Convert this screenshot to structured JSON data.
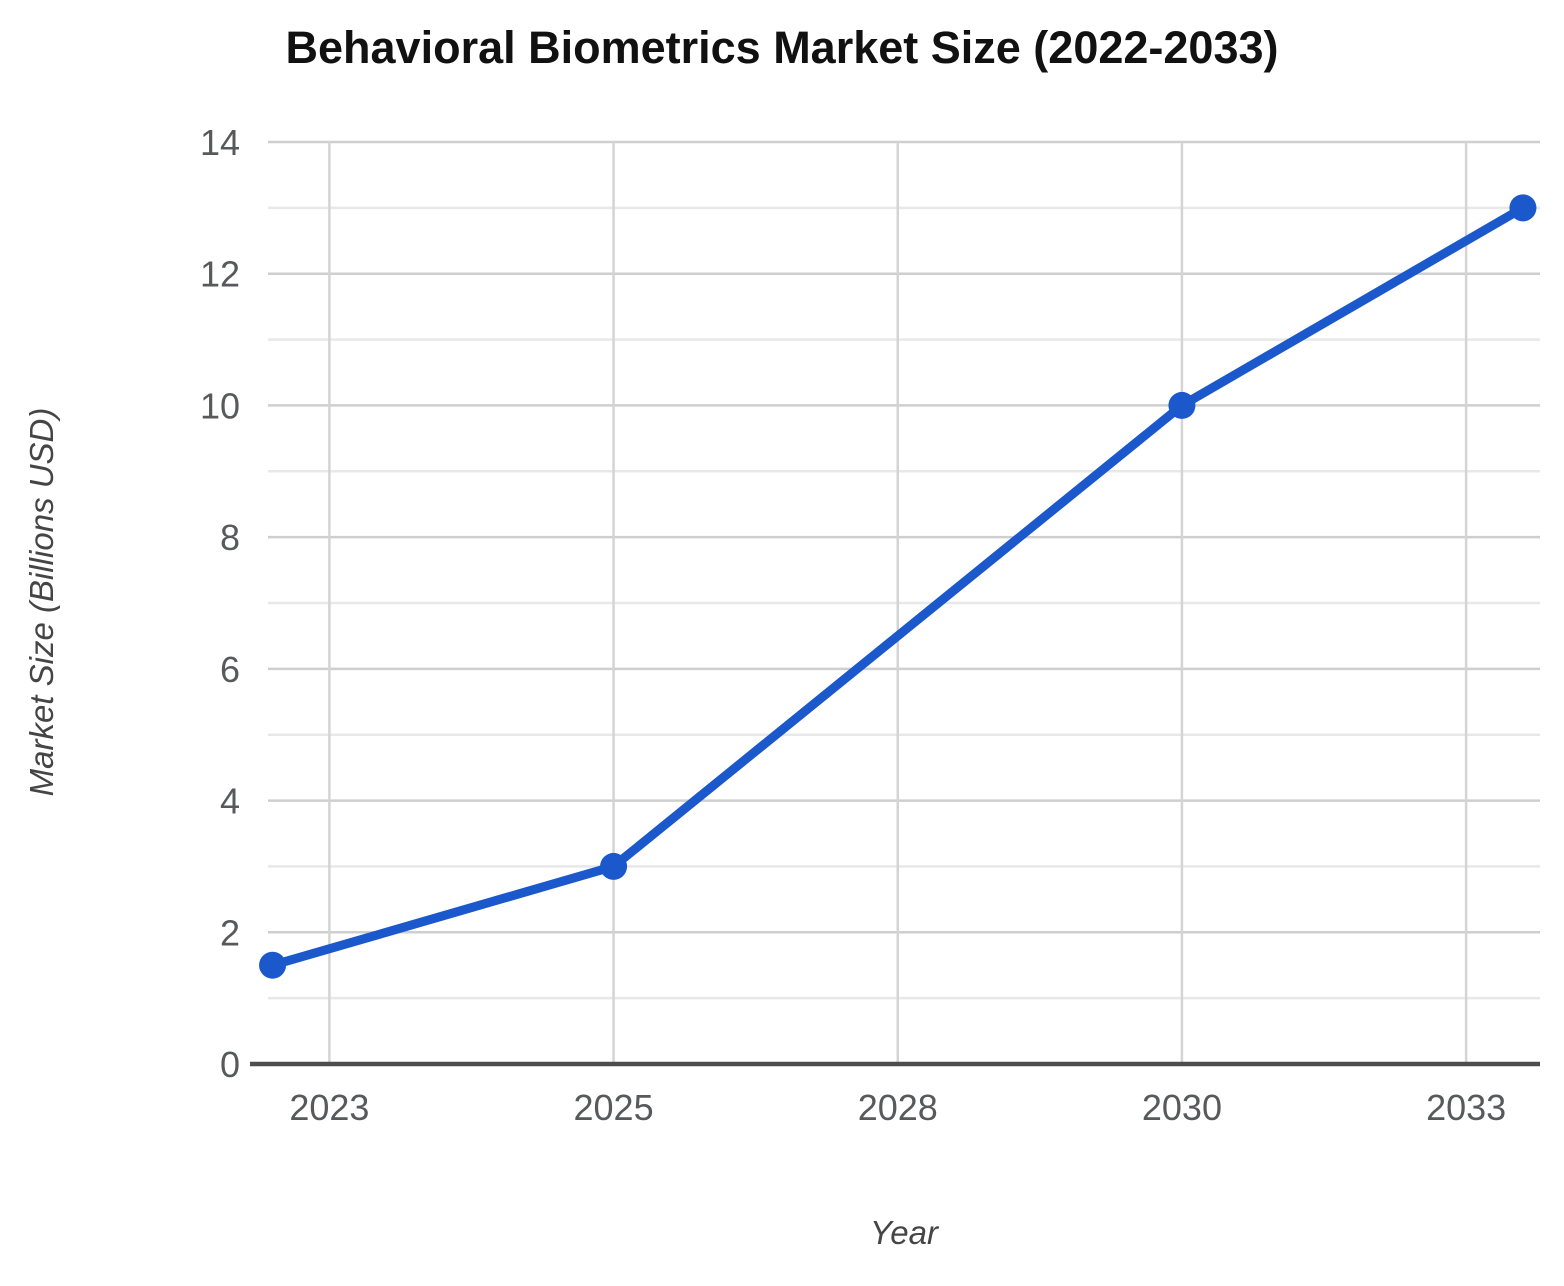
{
  "chart_data": {
    "type": "line",
    "title": "Behavioral Biometrics Market Size (2022-2033)",
    "xlabel": "Year",
    "ylabel": "Market Size (Billions USD)",
    "series": [
      {
        "x": [
          2022,
          2025,
          2030,
          2033
        ],
        "values": [
          1.5,
          3,
          10,
          13
        ],
        "color": "#1a58cc",
        "marker": "circle"
      }
    ],
    "x_axis": {
      "min": 2021.96,
      "max": 2033.15,
      "tick_values": [
        2022.5,
        2025,
        2027.5,
        2030,
        2032.5
      ],
      "tick_labels": [
        "2023",
        "2025",
        "2028",
        "2030",
        "2033"
      ]
    },
    "y_axis": {
      "min": 0,
      "max": 14,
      "minor_step": 1,
      "tick_values": [
        0,
        2,
        4,
        6,
        8,
        10,
        12,
        14
      ],
      "tick_labels": [
        "0",
        "2",
        "4",
        "6",
        "8",
        "10",
        "12",
        "14"
      ]
    },
    "grid": {
      "horizontal_major": true,
      "horizontal_minor": true,
      "vertical": true
    },
    "legend": "none",
    "colors": {
      "grid_major": "#cfcfcf",
      "grid_minor": "#e8e8e8",
      "grid_vertical": "#d4d4d4",
      "axis_line": "#4d4d4d",
      "tick_label": "#58595b",
      "title": "#111111",
      "axis_title": "#454545",
      "background": "#ffffff"
    }
  }
}
